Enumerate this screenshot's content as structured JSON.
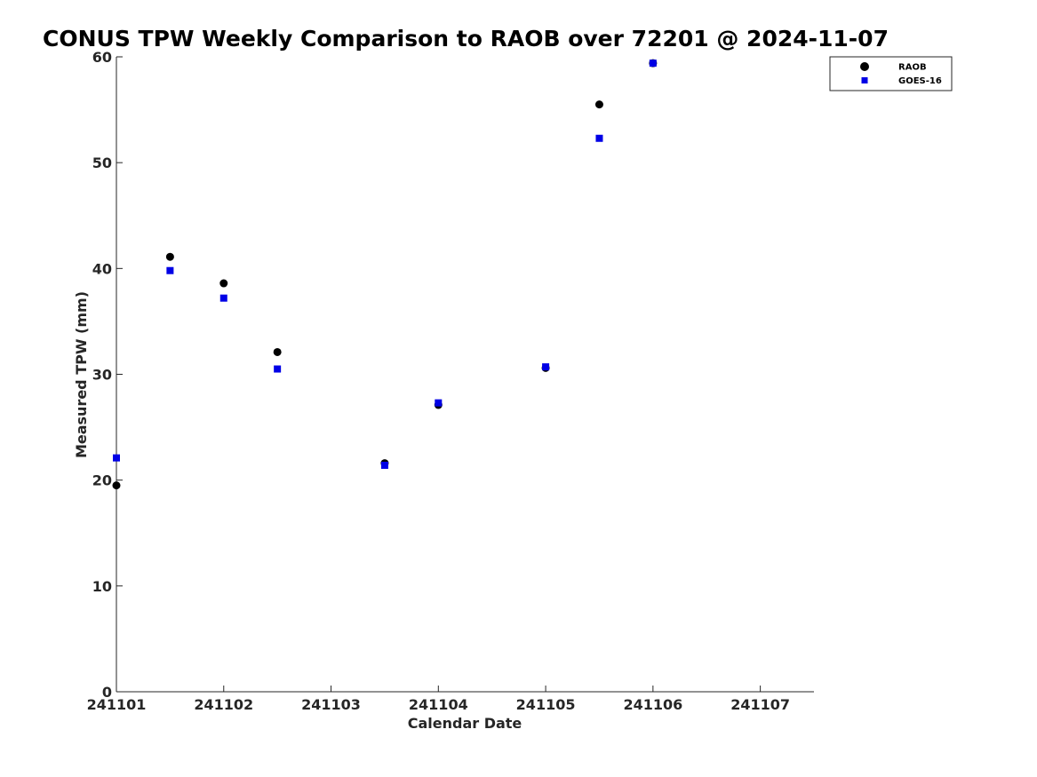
{
  "chart_data": {
    "type": "scatter",
    "title": "CONUS TPW Weekly Comparison to RAOB over 72201 @ 2024-11-07",
    "xlabel": "Calendar Date",
    "ylabel": "Measured TPW (mm)",
    "xlim": [
      "241101",
      "241107 12:00"
    ],
    "ylim": [
      0,
      60
    ],
    "x_tick_labels": [
      "241101",
      "241102",
      "241103",
      "241104",
      "241105",
      "241106",
      "241107"
    ],
    "y_ticks": [
      0,
      10,
      20,
      30,
      40,
      50,
      60
    ],
    "grid": false,
    "legend_position": "top-right",
    "series": [
      {
        "name": "RAOB",
        "marker": "circle",
        "color": "#000000",
        "points": [
          {
            "x": "241101 00:00",
            "y": 19.5
          },
          {
            "x": "241101 12:00",
            "y": 41.1
          },
          {
            "x": "241102 00:00",
            "y": 38.6
          },
          {
            "x": "241102 12:00",
            "y": 32.1
          },
          {
            "x": "241103 12:00",
            "y": 21.6
          },
          {
            "x": "241104 00:00",
            "y": 27.1
          },
          {
            "x": "241105 00:00",
            "y": 30.6
          },
          {
            "x": "241105 12:00",
            "y": 55.5
          },
          {
            "x": "241106 00:00",
            "y": 59.4
          }
        ]
      },
      {
        "name": "GOES-16",
        "marker": "square",
        "color": "#0000e6",
        "points": [
          {
            "x": "241101 00:00",
            "y": 22.1
          },
          {
            "x": "241101 12:00",
            "y": 39.8
          },
          {
            "x": "241102 00:00",
            "y": 37.2
          },
          {
            "x": "241102 12:00",
            "y": 30.5
          },
          {
            "x": "241103 12:00",
            "y": 21.4
          },
          {
            "x": "241104 00:00",
            "y": 27.3
          },
          {
            "x": "241105 00:00",
            "y": 30.7
          },
          {
            "x": "241105 12:00",
            "y": 52.3
          },
          {
            "x": "241106 00:00",
            "y": 59.4
          }
        ]
      }
    ]
  }
}
